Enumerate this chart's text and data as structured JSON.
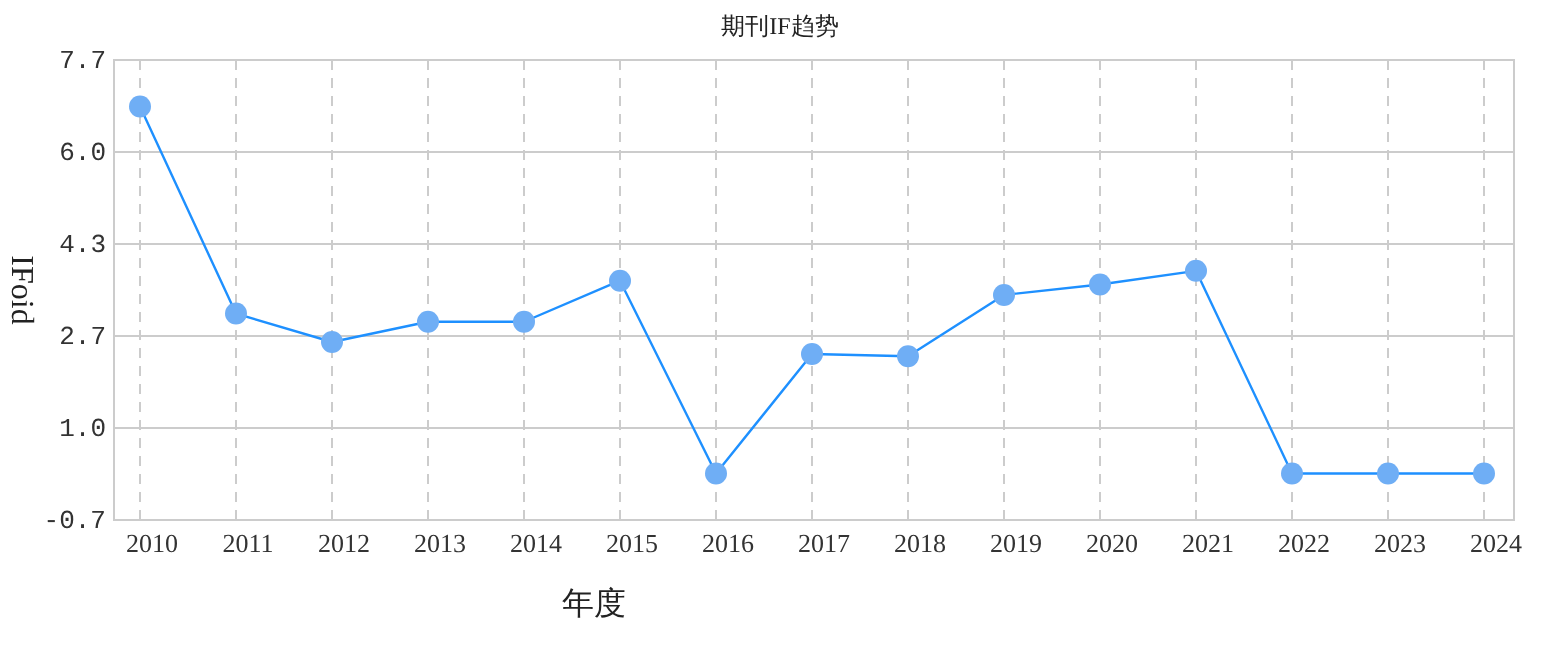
{
  "chart_data": {
    "type": "line",
    "title": "期刊IF趋势",
    "xlabel": "年度",
    "ylabel": "IFoid",
    "categories": [
      "2010",
      "2011",
      "2012",
      "2013",
      "2014",
      "2015",
      "2016",
      "2017",
      "2018",
      "2019",
      "2020",
      "2021",
      "2022",
      "2023",
      "2024"
    ],
    "series": [
      {
        "color": "#1e90ff",
        "colors": [
          "#6faef5",
          "#6faef5",
          "#6faef5",
          "#6faef5",
          "#6faef5",
          "#6faef5",
          "#6faef5",
          "#6faef5",
          "#6faef5",
          "#6faef5",
          "#6faef5",
          "#6faef5",
          "#6faef5",
          "#6faef5",
          "#6faef5"
        ],
        "values": [
          6.85,
          3.07,
          2.55,
          2.92,
          2.92,
          3.67,
          0.15,
          2.33,
          2.29,
          3.41,
          3.6,
          3.85,
          0.15,
          0.15,
          0.15
        ]
      }
    ],
    "ylim": [
      -0.7,
      7.7
    ],
    "yticks": [
      {
        "value": -0.7,
        "label": "-0.7"
      },
      {
        "value": 0.98,
        "label": "1.0"
      },
      {
        "value": 2.66,
        "label": "2.7"
      },
      {
        "value": 4.34,
        "label": "4.3"
      },
      {
        "value": 6.02,
        "label": "6.0"
      },
      {
        "value": 7.7,
        "label": "7.7"
      }
    ],
    "grid": true,
    "marker": "circle",
    "line_style": "solid"
  }
}
